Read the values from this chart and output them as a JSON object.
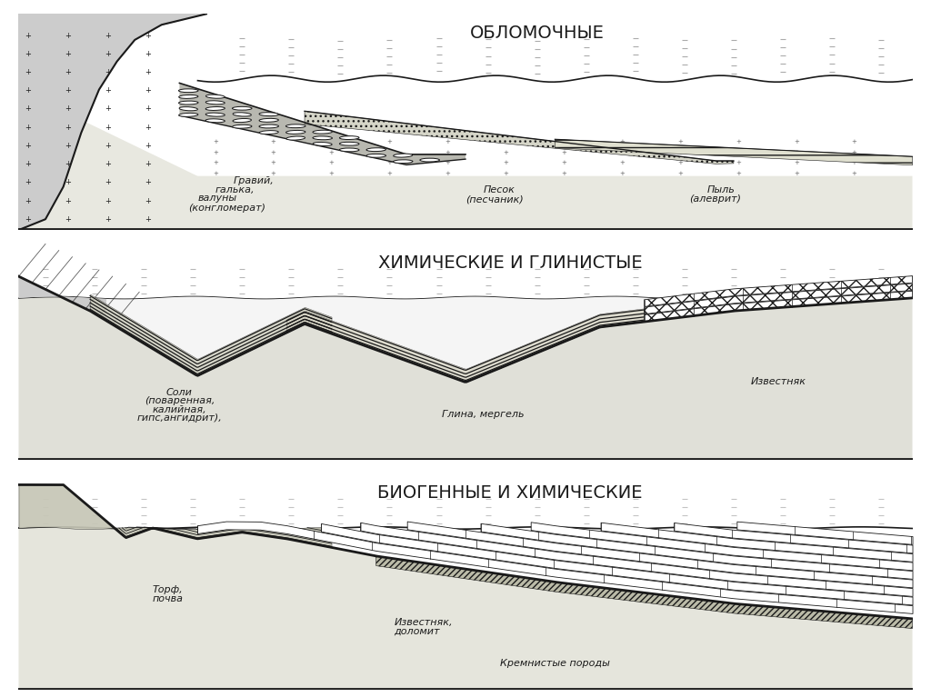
{
  "title1": "ОБЛОМОЧНЫЕ",
  "title2": "ХИМИЧЕСКИЕ И ГЛИНИСТЫЕ",
  "title3": "БИОГЕННЫЕ И ХИМИЧЕСКИЕ",
  "bg_color": "#ffffff",
  "line_color": "#1a1a1a",
  "title_fontsize": 14
}
